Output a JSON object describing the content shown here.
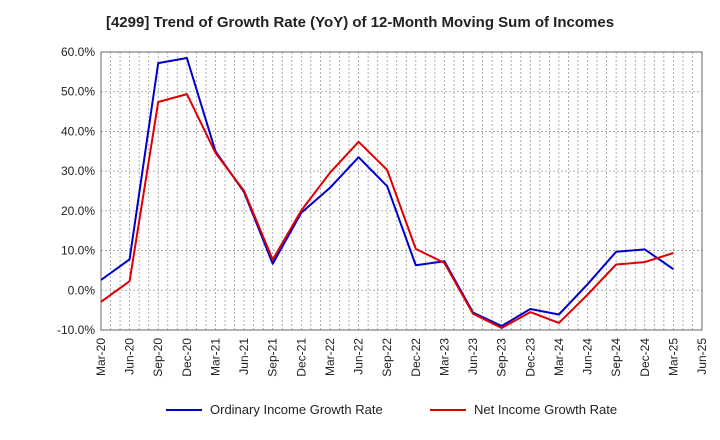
{
  "chart_data": {
    "type": "line",
    "title": "[4299]  Trend of Growth Rate (YoY) of 12-Month Moving Sum of Incomes",
    "x": [
      "Mar-20",
      "Jun-20",
      "Sep-20",
      "Dec-20",
      "Mar-21",
      "Jun-21",
      "Sep-21",
      "Dec-21",
      "Mar-22",
      "Jun-22",
      "Sep-22",
      "Dec-22",
      "Mar-23",
      "Jun-23",
      "Sep-23",
      "Dec-23",
      "Mar-24",
      "Jun-24",
      "Sep-24",
      "Dec-24",
      "Mar-25"
    ],
    "x_ticks": [
      "Mar-20",
      "Jun-20",
      "Sep-20",
      "Dec-20",
      "Mar-21",
      "Jun-21",
      "Sep-21",
      "Dec-21",
      "Mar-22",
      "Jun-22",
      "Sep-22",
      "Dec-22",
      "Mar-23",
      "Jun-23",
      "Sep-23",
      "Dec-23",
      "Mar-24",
      "Jun-24",
      "Sep-24",
      "Dec-24",
      "Mar-25",
      "Jun-25"
    ],
    "ylim": [
      -10,
      60
    ],
    "y_ticks": [
      60,
      50,
      40,
      30,
      20,
      10,
      0,
      -10
    ],
    "y_tick_labels": [
      "60.0%",
      "50.0%",
      "40.0%",
      "30.0%",
      "20.0%",
      "10.0%",
      "0.0%",
      "-10.0%"
    ],
    "grid": true,
    "legend_position": "bottom",
    "series": [
      {
        "name": "Ordinary Income Growth Rate",
        "color": "#0000cc",
        "values": [
          2.6,
          7.8,
          57.2,
          58.5,
          35.0,
          24.7,
          6.7,
          19.5,
          25.8,
          33.5,
          26.2,
          6.3,
          7.3,
          -5.6,
          -9.0,
          -4.7,
          -6.1,
          1.5,
          9.7,
          10.3,
          5.3
        ]
      },
      {
        "name": "Net Income Growth Rate",
        "color": "#dd0000",
        "values": [
          -2.9,
          2.3,
          47.4,
          49.4,
          34.6,
          25.0,
          7.7,
          20.1,
          29.6,
          37.4,
          30.3,
          10.4,
          6.9,
          -5.9,
          -9.5,
          -5.5,
          -8.2,
          -1.1,
          6.5,
          7.1,
          9.4
        ]
      }
    ]
  }
}
